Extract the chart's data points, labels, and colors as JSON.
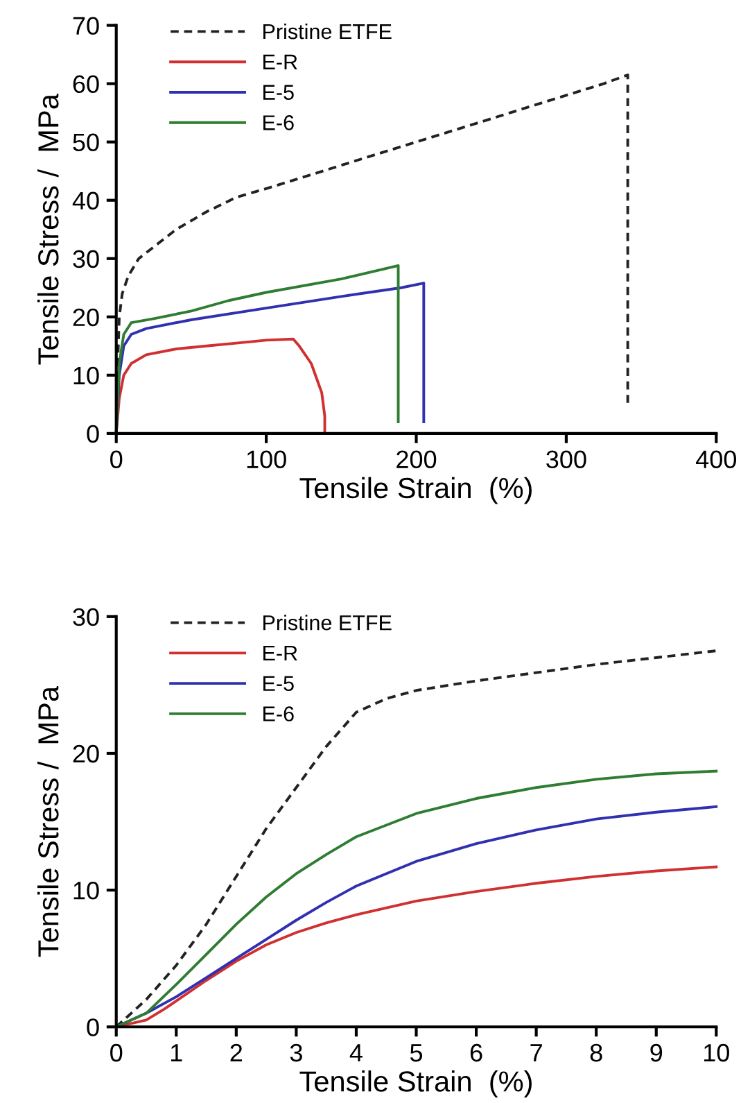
{
  "chart_data": [
    {
      "type": "line",
      "xlabel": "Tensile Strain  (%)",
      "ylabel": "Tensile Stress /  MPa",
      "xlim": [
        0,
        400
      ],
      "ylim": [
        0,
        70
      ],
      "xticks": [
        0,
        100,
        200,
        300,
        400
      ],
      "yticks": [
        0,
        10,
        20,
        30,
        40,
        50,
        60,
        70
      ],
      "grid": false,
      "legend": "top left",
      "series": [
        {
          "name": "Pristine ETFE",
          "color": "#222222",
          "line_style": "dashed",
          "x": [
            0,
            1,
            2,
            4,
            8,
            15,
            25,
            40,
            60,
            80,
            100,
            125,
            150,
            175,
            200,
            225,
            250,
            275,
            300,
            325,
            341,
            341
          ],
          "values": [
            0,
            12,
            20,
            24,
            27,
            30,
            32,
            35,
            38,
            40.5,
            42,
            44,
            46,
            48,
            50,
            52,
            54,
            56,
            58,
            60,
            61.5,
            5
          ]
        },
        {
          "name": "E-R",
          "color": "#d03030",
          "line_style": "solid",
          "x": [
            0,
            2,
            5,
            10,
            20,
            40,
            60,
            80,
            100,
            118,
            122,
            130,
            137,
            139,
            139
          ],
          "values": [
            0,
            6,
            10,
            12,
            13.5,
            14.5,
            15,
            15.5,
            16,
            16.2,
            15,
            12,
            7,
            3,
            0
          ]
        },
        {
          "name": "E-5",
          "color": "#3030b0",
          "line_style": "solid",
          "x": [
            0,
            2,
            5,
            10,
            20,
            50,
            100,
            150,
            190,
            205,
            205
          ],
          "values": [
            0,
            10,
            15,
            17,
            18,
            19.5,
            21.5,
            23.5,
            25,
            25.8,
            2
          ]
        },
        {
          "name": "E-6",
          "color": "#2e7d32",
          "line_style": "solid",
          "x": [
            0,
            2,
            5,
            10,
            25,
            50,
            75,
            100,
            150,
            188,
            188
          ],
          "values": [
            0,
            12,
            17,
            19,
            19.7,
            21,
            22.8,
            24.2,
            26.5,
            28.8,
            2
          ]
        }
      ]
    },
    {
      "type": "line",
      "xlabel": "Tensile Strain  (%)",
      "ylabel": "Tensile Stress /  MPa",
      "xlim": [
        0,
        10
      ],
      "ylim": [
        0,
        30
      ],
      "xticks": [
        0,
        1,
        2,
        3,
        4,
        5,
        6,
        7,
        8,
        9,
        10
      ],
      "yticks": [
        0,
        10,
        20,
        30
      ],
      "grid": false,
      "legend": "top left",
      "series": [
        {
          "name": "Pristine ETFE",
          "color": "#222222",
          "line_style": "dashed",
          "x": [
            0,
            0.5,
            1,
            1.5,
            2,
            2.5,
            3,
            3.5,
            4,
            4.5,
            5,
            6,
            7,
            8,
            9,
            10
          ],
          "values": [
            0,
            2,
            4.5,
            7.5,
            11,
            14.5,
            17.5,
            20.5,
            23,
            24,
            24.6,
            25.3,
            25.9,
            26.5,
            27,
            27.5
          ]
        },
        {
          "name": "E-R",
          "color": "#d03030",
          "line_style": "solid",
          "x": [
            0,
            0.5,
            0.8,
            1,
            1.5,
            2,
            2.5,
            3,
            3.5,
            4,
            5,
            6,
            7,
            8,
            9,
            10
          ],
          "values": [
            0,
            0.5,
            1.3,
            1.9,
            3.4,
            4.8,
            6,
            6.9,
            7.6,
            8.2,
            9.2,
            9.9,
            10.5,
            11,
            11.4,
            11.7
          ]
        },
        {
          "name": "E-5",
          "color": "#3030b0",
          "line_style": "solid",
          "x": [
            0,
            0.5,
            1,
            1.5,
            2,
            2.5,
            3,
            3.5,
            4,
            5,
            6,
            7,
            8,
            9,
            10
          ],
          "values": [
            0,
            1,
            2.2,
            3.6,
            5,
            6.4,
            7.8,
            9.1,
            10.3,
            12.1,
            13.4,
            14.4,
            15.2,
            15.7,
            16.1
          ]
        },
        {
          "name": "E-6",
          "color": "#2e7d32",
          "line_style": "solid",
          "x": [
            0,
            0.5,
            1,
            1.5,
            2,
            2.5,
            3,
            3.5,
            4,
            5,
            6,
            7,
            8,
            9,
            10
          ],
          "values": [
            0,
            1,
            3.1,
            5.3,
            7.5,
            9.5,
            11.2,
            12.6,
            13.9,
            15.6,
            16.7,
            17.5,
            18.1,
            18.5,
            18.7
          ]
        }
      ]
    }
  ]
}
